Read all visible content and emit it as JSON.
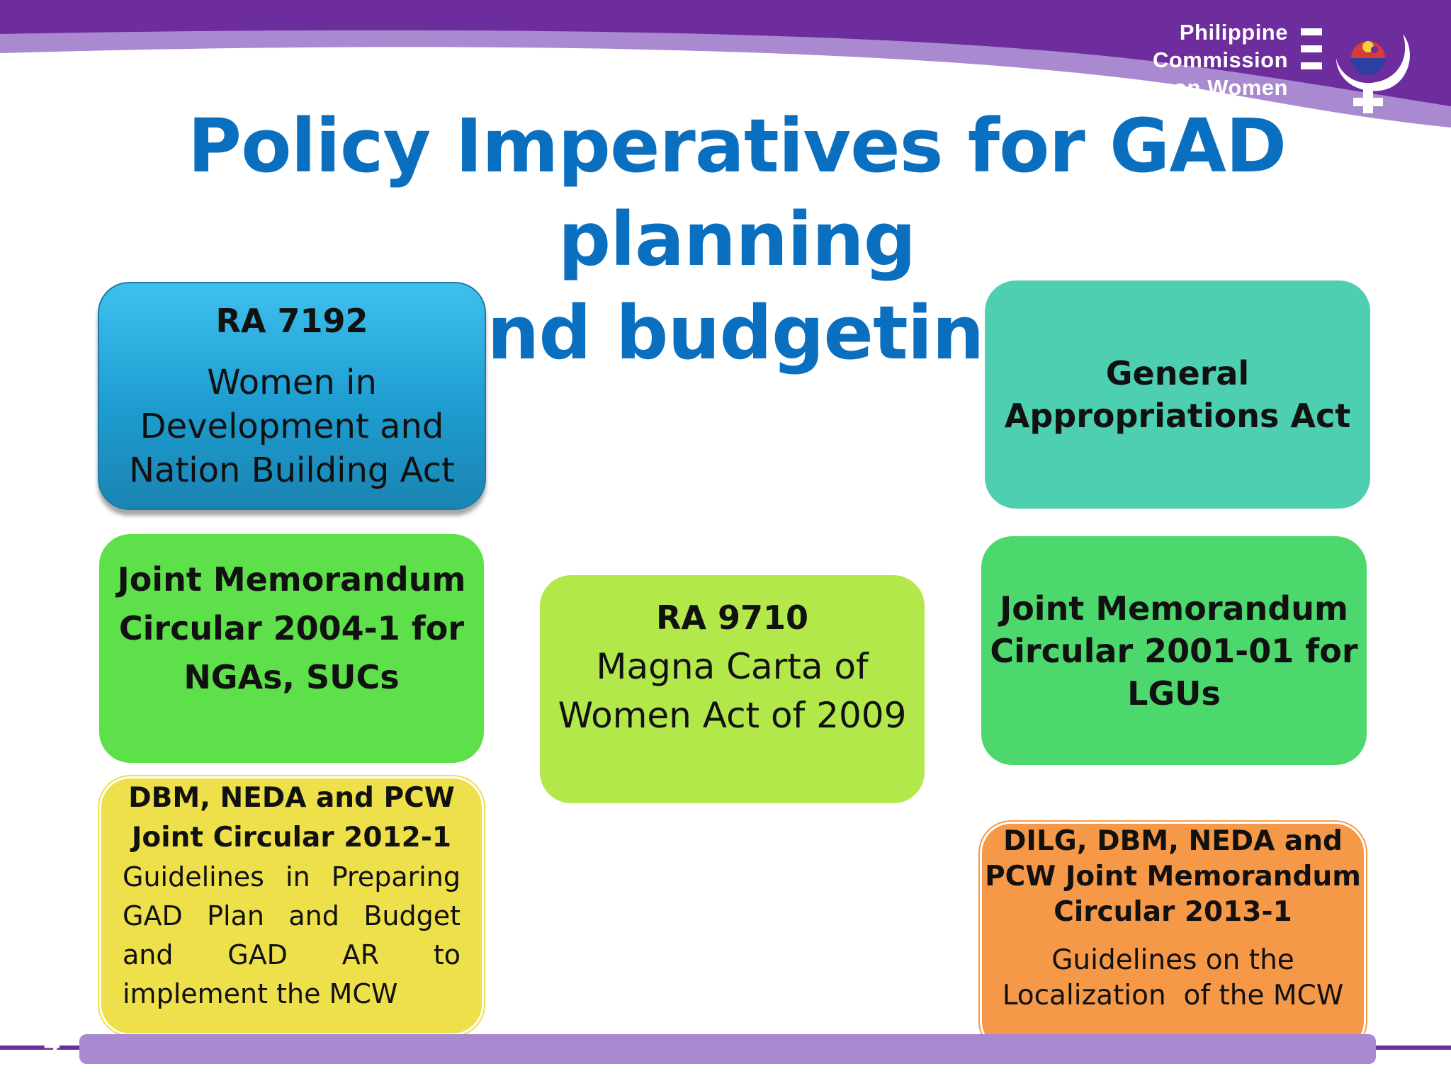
{
  "header": {
    "logo_lines": [
      "Philippine",
      "Commission",
      "on Women"
    ],
    "colors": {
      "banner_dark": "#6d2d9c",
      "banner_light": "#a98ad0"
    }
  },
  "title": {
    "line1": "Policy Imperatives for GAD planning",
    "line2": "and budgeting",
    "color": "#0b6fc0"
  },
  "boxes": {
    "ra7192": {
      "heading": "RA 7192",
      "lines": [
        "Women in",
        "Development and",
        "Nation Building Act"
      ],
      "color": "#2fb0e0"
    },
    "gaa": {
      "lines": [
        "General",
        "Appropriations Act"
      ],
      "color": "#4ecfb2"
    },
    "jmc2004": {
      "lines": [
        "Joint Memorandum",
        "Circular 2004-1 for",
        "NGAs, SUCs"
      ],
      "color": "#5ee04a"
    },
    "ra9710": {
      "heading": "RA 9710",
      "lines": [
        "Magna Carta of",
        "Women Act of 2009"
      ],
      "color": "#b3e84a"
    },
    "jmc2001": {
      "lines": [
        "Joint Memorandum",
        "Circular 2001-01 for",
        "LGUs"
      ],
      "color": "#4cd86c"
    },
    "jc2012": {
      "heading_lines": [
        "DBM, NEDA and PCW",
        "Joint Circular 2012-1"
      ],
      "body": "Guidelines in Preparing GAD Plan and Budget and GAD AR to implement the MCW",
      "color": "#eee04a"
    },
    "jmc2013": {
      "heading_lines": [
        "DILG, DBM, NEDA and",
        "PCW Joint Memorandum",
        "Circular 2013-1"
      ],
      "lines": [
        "Guidelines on the",
        "Localization  of the MCW"
      ],
      "color": "#f59848"
    }
  },
  "footer": {
    "slide_number": "4"
  }
}
